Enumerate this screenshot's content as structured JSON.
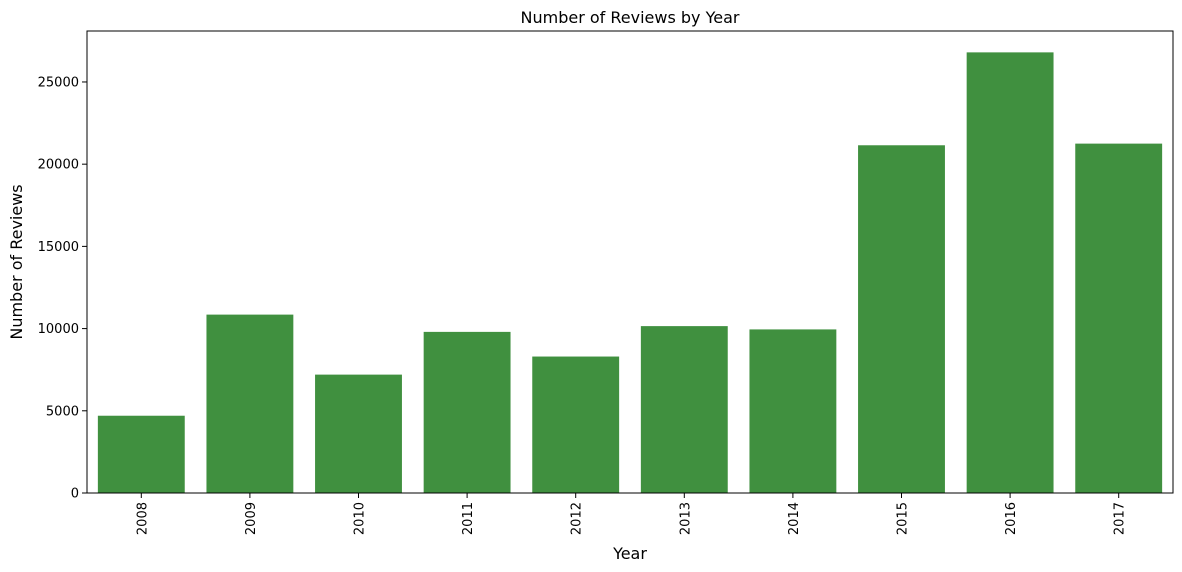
{
  "chart_data": {
    "type": "bar",
    "title": "Number of Reviews by Year",
    "xlabel": "Year",
    "ylabel": "Number of Reviews",
    "categories": [
      "2008",
      "2009",
      "2010",
      "2011",
      "2012",
      "2013",
      "2014",
      "2015",
      "2016",
      "2017"
    ],
    "values": [
      4700,
      10850,
      7200,
      9800,
      8300,
      10150,
      9950,
      21150,
      26800,
      21250
    ],
    "ylim": [
      0,
      28100
    ],
    "yticks": [
      0,
      5000,
      10000,
      15000,
      20000,
      25000
    ],
    "ytick_labels": [
      "0",
      "5000",
      "10000",
      "15000",
      "20000",
      "25000"
    ],
    "bar_color": "#40903f",
    "grid": false,
    "x_tick_rotation": "vertical"
  }
}
